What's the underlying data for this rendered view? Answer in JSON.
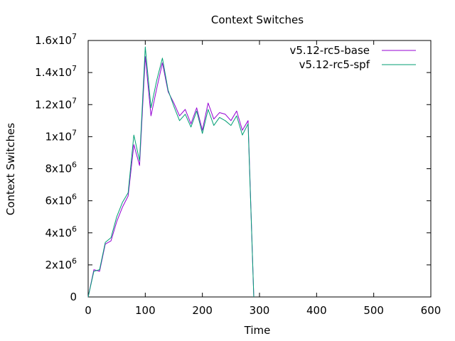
{
  "chart_data": {
    "type": "line",
    "title": "Context Switches",
    "xlabel": "Time",
    "ylabel": "Context Switches",
    "xlim": [
      0,
      600
    ],
    "ylim": [
      0,
      16000000
    ],
    "x_ticks": [
      0,
      100,
      200,
      300,
      400,
      500,
      600
    ],
    "x_tick_labels": [
      "0",
      "100",
      "200",
      "300",
      "400",
      "500",
      "600"
    ],
    "y_ticks": [
      {
        "value": 0,
        "mantissa": "0",
        "exp": ""
      },
      {
        "value": 2000000,
        "mantissa": "2x10",
        "exp": "6"
      },
      {
        "value": 4000000,
        "mantissa": "4x10",
        "exp": "6"
      },
      {
        "value": 6000000,
        "mantissa": "6x10",
        "exp": "6"
      },
      {
        "value": 8000000,
        "mantissa": "8x10",
        "exp": "6"
      },
      {
        "value": 10000000,
        "mantissa": "1x10",
        "exp": "7"
      },
      {
        "value": 12000000,
        "mantissa": "1.2x10",
        "exp": "7"
      },
      {
        "value": 14000000,
        "mantissa": "1.4x10",
        "exp": "7"
      },
      {
        "value": 16000000,
        "mantissa": "1.6x10",
        "exp": "7"
      }
    ],
    "grid": false,
    "legend_position": "top-right",
    "x": [
      0,
      10,
      20,
      30,
      40,
      50,
      60,
      70,
      80,
      90,
      100,
      110,
      120,
      130,
      140,
      150,
      160,
      170,
      180,
      190,
      200,
      210,
      220,
      230,
      240,
      250,
      260,
      270,
      280,
      290
    ],
    "series": [
      {
        "name": "v5.12-rc5-base",
        "color": "#9400d3",
        "values": [
          0,
          1700000,
          1600000,
          3300000,
          3500000,
          4700000,
          5600000,
          6300000,
          9500000,
          8200000,
          15000000,
          11300000,
          13000000,
          14600000,
          12800000,
          12100000,
          11300000,
          11700000,
          10800000,
          11800000,
          10400000,
          12100000,
          11100000,
          11500000,
          11400000,
          11000000,
          11600000,
          10400000,
          11000000,
          0
        ]
      },
      {
        "name": "v5.12-rc5-spf",
        "color": "#009e73",
        "values": [
          0,
          1600000,
          1700000,
          3400000,
          3700000,
          5000000,
          5900000,
          6500000,
          10100000,
          8500000,
          15600000,
          11800000,
          13500000,
          14900000,
          12900000,
          11900000,
          11000000,
          11400000,
          10600000,
          11600000,
          10200000,
          11700000,
          10700000,
          11200000,
          11000000,
          10700000,
          11300000,
          10100000,
          10800000,
          0
        ]
      }
    ]
  }
}
